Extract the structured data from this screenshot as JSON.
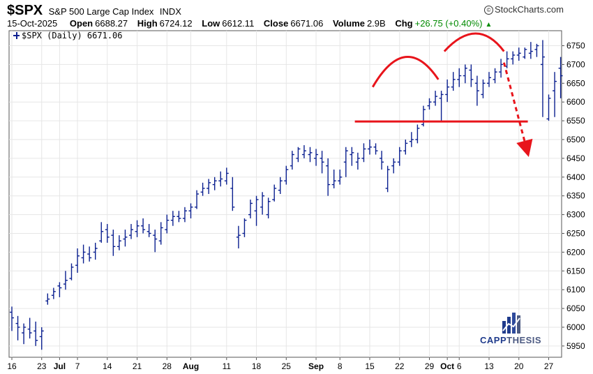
{
  "header": {
    "symbol": "$SPX",
    "index_name": "S&P 500 Large Cap Index",
    "exchange": "INDX",
    "brand": "StockCharts.com",
    "brand_symbol": "©",
    "date": "15-Oct-2025",
    "open_label": "Open",
    "open": "6688.27",
    "high_label": "High",
    "high": "6724.12",
    "low_label": "Low",
    "low": "6612.11",
    "close_label": "Close",
    "close": "6671.06",
    "volume_label": "Volume",
    "volume": "2.9B",
    "chg_label": "Chg",
    "chg": "+26.75 (+0.40%)",
    "chg_color": "#008a00"
  },
  "legend": {
    "text": "$SPX (Daily) 6671.06",
    "color": "#0a1f8f"
  },
  "logo": {
    "part1": "CAPP",
    "part2": "THESIS",
    "color1": "#1f3b8c",
    "color2": "#4c5a82"
  },
  "chart_data": {
    "type": "ohlc",
    "y_axis": {
      "position": "right",
      "ylim": [
        5920,
        6790
      ],
      "ticks": [
        5950,
        6000,
        6050,
        6100,
        6150,
        6200,
        6250,
        6300,
        6350,
        6400,
        6450,
        6500,
        6550,
        6600,
        6650,
        6700,
        6750
      ]
    },
    "x_axis": {
      "ticks": [
        {
          "label": "16",
          "bold": false,
          "day": 0
        },
        {
          "label": "23",
          "bold": false,
          "day": 5
        },
        {
          "label": "Jul",
          "bold": true,
          "day": 8
        },
        {
          "label": "7",
          "bold": false,
          "day": 11
        },
        {
          "label": "14",
          "bold": false,
          "day": 16
        },
        {
          "label": "21",
          "bold": false,
          "day": 21
        },
        {
          "label": "28",
          "bold": false,
          "day": 26
        },
        {
          "label": "Aug",
          "bold": true,
          "day": 30
        },
        {
          "label": "11",
          "bold": false,
          "day": 36
        },
        {
          "label": "18",
          "bold": false,
          "day": 41
        },
        {
          "label": "25",
          "bold": false,
          "day": 46
        },
        {
          "label": "Sep",
          "bold": true,
          "day": 51
        },
        {
          "label": "8",
          "bold": false,
          "day": 55
        },
        {
          "label": "15",
          "bold": false,
          "day": 60
        },
        {
          "label": "22",
          "bold": false,
          "day": 65
        },
        {
          "label": "29",
          "bold": false,
          "day": 70
        },
        {
          "label": "Oct",
          "bold": true,
          "day": 73
        },
        {
          "label": "6",
          "bold": false,
          "day": 75
        },
        {
          "label": "13",
          "bold": false,
          "day": 80
        },
        {
          "label": "20",
          "bold": false,
          "day": 85
        },
        {
          "label": "27",
          "bold": false,
          "day": 90
        }
      ]
    },
    "series": {
      "color": "#0a1f8f",
      "ohlc": [
        [
          6040,
          6055,
          5990,
          6025
        ],
        [
          6010,
          6030,
          5965,
          6000
        ],
        [
          5985,
          6010,
          5955,
          6000
        ],
        [
          5995,
          6025,
          5970,
          5985
        ],
        [
          5990,
          6015,
          5950,
          5965
        ],
        [
          5975,
          6000,
          5940,
          5990
        ],
        [
          6070,
          6090,
          6060,
          6075
        ],
        [
          6085,
          6105,
          6075,
          6095
        ],
        [
          6110,
          6120,
          6080,
          6105
        ],
        [
          6115,
          6150,
          6100,
          6125
        ],
        [
          6130,
          6170,
          6125,
          6160
        ],
        [
          6165,
          6210,
          6145,
          6190
        ],
        [
          6185,
          6220,
          6170,
          6200
        ],
        [
          6195,
          6215,
          6175,
          6185
        ],
        [
          6200,
          6225,
          6180,
          6210
        ],
        [
          6230,
          6280,
          6225,
          6255
        ],
        [
          6260,
          6275,
          6225,
          6240
        ],
        [
          6245,
          6260,
          6190,
          6215
        ],
        [
          6215,
          6245,
          6205,
          6230
        ],
        [
          6235,
          6260,
          6215,
          6240
        ],
        [
          6245,
          6275,
          6235,
          6260
        ],
        [
          6255,
          6285,
          6240,
          6270
        ],
        [
          6270,
          6290,
          6250,
          6260
        ],
        [
          6255,
          6275,
          6240,
          6250
        ],
        [
          6245,
          6260,
          6200,
          6235
        ],
        [
          6230,
          6280,
          6220,
          6265
        ],
        [
          6260,
          6300,
          6250,
          6285
        ],
        [
          6285,
          6310,
          6270,
          6295
        ],
        [
          6295,
          6310,
          6280,
          6290
        ],
        [
          6290,
          6320,
          6280,
          6310
        ],
        [
          6310,
          6330,
          6290,
          6320
        ],
        [
          6320,
          6365,
          6315,
          6355
        ],
        [
          6360,
          6385,
          6350,
          6370
        ],
        [
          6370,
          6395,
          6355,
          6385
        ],
        [
          6380,
          6400,
          6365,
          6390
        ],
        [
          6390,
          6415,
          6375,
          6395
        ],
        [
          6390,
          6425,
          6380,
          6410
        ],
        [
          6370,
          6400,
          6310,
          6320
        ],
        [
          6240,
          6270,
          6210,
          6245
        ],
        [
          6250,
          6290,
          6240,
          6285
        ],
        [
          6300,
          6340,
          6290,
          6330
        ],
        [
          6310,
          6350,
          6270,
          6340
        ],
        [
          6320,
          6360,
          6300,
          6350
        ],
        [
          6300,
          6345,
          6290,
          6335
        ],
        [
          6340,
          6380,
          6335,
          6370
        ],
        [
          6365,
          6400,
          6355,
          6390
        ],
        [
          6390,
          6430,
          6380,
          6420
        ],
        [
          6430,
          6470,
          6420,
          6460
        ],
        [
          6450,
          6480,
          6440,
          6475
        ],
        [
          6460,
          6485,
          6450,
          6470
        ],
        [
          6460,
          6480,
          6440,
          6465
        ],
        [
          6450,
          6475,
          6430,
          6460
        ],
        [
          6450,
          6470,
          6410,
          6440
        ],
        [
          6430,
          6450,
          6350,
          6380
        ],
        [
          6380,
          6420,
          6370,
          6390
        ],
        [
          6390,
          6420,
          6380,
          6400
        ],
        [
          6440,
          6480,
          6400,
          6470
        ],
        [
          6460,
          6480,
          6430,
          6465
        ],
        [
          6440,
          6465,
          6420,
          6450
        ],
        [
          6450,
          6490,
          6440,
          6475
        ],
        [
          6475,
          6500,
          6460,
          6480
        ],
        [
          6480,
          6490,
          6460,
          6470
        ],
        [
          6450,
          6470,
          6420,
          6440
        ],
        [
          6370,
          6430,
          6360,
          6420
        ],
        [
          6430,
          6450,
          6410,
          6440
        ],
        [
          6440,
          6480,
          6430,
          6470
        ],
        [
          6470,
          6500,
          6460,
          6490
        ],
        [
          6495,
          6520,
          6480,
          6500
        ],
        [
          6500,
          6540,
          6490,
          6530
        ],
        [
          6540,
          6590,
          6535,
          6580
        ],
        [
          6590,
          6610,
          6580,
          6600
        ],
        [
          6600,
          6630,
          6590,
          6615
        ],
        [
          6610,
          6630,
          6550,
          6620
        ],
        [
          6620,
          6660,
          6600,
          6640
        ],
        [
          6640,
          6680,
          6630,
          6660
        ],
        [
          6660,
          6690,
          6640,
          6670
        ],
        [
          6670,
          6700,
          6650,
          6690
        ],
        [
          6685,
          6700,
          6640,
          6660
        ],
        [
          6650,
          6670,
          6590,
          6630
        ],
        [
          6620,
          6660,
          6610,
          6650
        ],
        [
          6650,
          6680,
          6640,
          6665
        ],
        [
          6660,
          6690,
          6650,
          6680
        ],
        [
          6680,
          6715,
          6665,
          6700
        ],
        [
          6695,
          6735,
          6690,
          6715
        ],
        [
          6715,
          6735,
          6700,
          6725
        ],
        [
          6725,
          6745,
          6710,
          6730
        ],
        [
          6720,
          6745,
          6715,
          6740
        ],
        [
          6730,
          6760,
          6715,
          6735
        ],
        [
          6740,
          6755,
          6720,
          6750
        ],
        [
          6700,
          6765,
          6560,
          6720
        ],
        [
          6555,
          6620,
          6550,
          6610
        ],
        [
          6630,
          6680,
          6560,
          6655
        ],
        [
          6690,
          6720,
          6610,
          6670
        ]
      ]
    },
    "annotations": [
      {
        "type": "support_line",
        "price": 6548,
        "color": "#e8141b"
      },
      {
        "type": "arc_left_shoulder",
        "color": "#e8141b"
      },
      {
        "type": "arc_head",
        "color": "#e8141b"
      },
      {
        "type": "dashed_arrow_down",
        "color": "#e8141b"
      }
    ]
  }
}
